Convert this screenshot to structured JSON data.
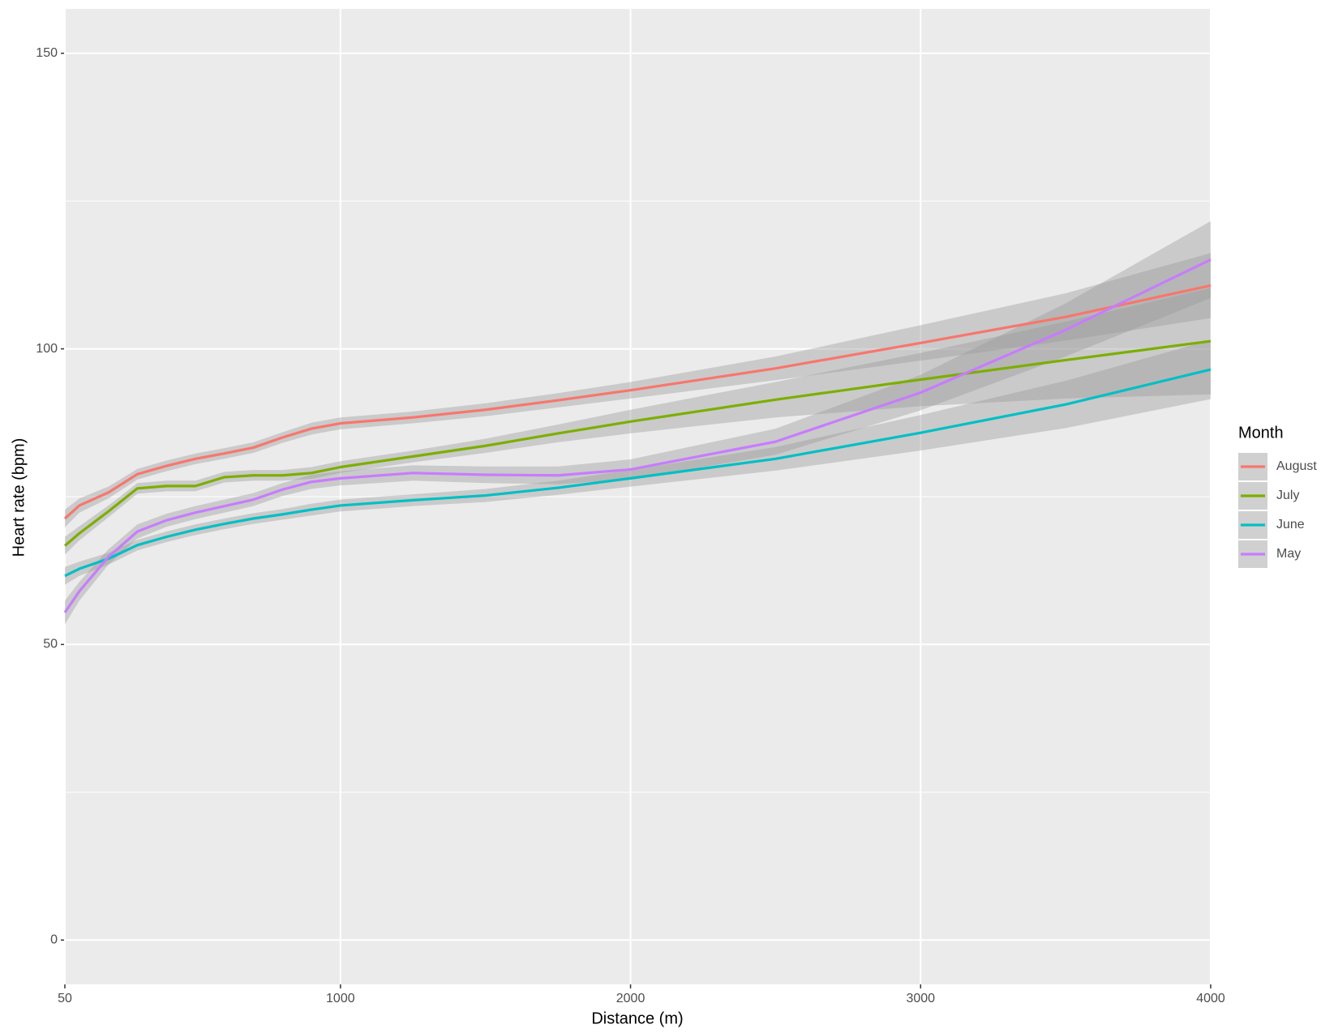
{
  "chart_data": {
    "type": "line",
    "x_label": "Distance (m)",
    "y_label": "Heart rate (bpm)",
    "legend_title": "Month",
    "legend_position": "right",
    "grid": true,
    "x": [
      50,
      100,
      200,
      300,
      400,
      500,
      600,
      700,
      800,
      900,
      1000,
      1250,
      1500,
      1750,
      2000,
      2500,
      3000,
      3500,
      4000
    ],
    "series": [
      {
        "name": "August",
        "color": "#F8766D",
        "values": [
          71.3,
          73.5,
          75.7,
          78.8,
          80.2,
          81.4,
          82.3,
          83.3,
          85,
          86.5,
          87.4,
          88.4,
          89.7,
          91.3,
          93,
          96.7,
          101,
          105.4,
          110.7
        ],
        "ci": [
          1.5,
          1.2,
          1,
          0.9,
          0.9,
          0.9,
          0.9,
          0.9,
          0.9,
          1,
          1,
          1,
          1.1,
          1.2,
          1.4,
          2,
          3,
          4,
          5.5
        ]
      },
      {
        "name": "July",
        "color": "#7CAE00",
        "values": [
          66.7,
          68.8,
          72.5,
          76.4,
          76.8,
          76.8,
          78.3,
          78.6,
          78.6,
          79,
          80,
          81.8,
          83.6,
          85.7,
          87.7,
          91.4,
          94.8,
          98.1,
          101.3
        ],
        "ci": [
          1.5,
          1.2,
          1,
          0.9,
          0.9,
          0.9,
          0.9,
          0.9,
          0.9,
          1,
          1,
          1,
          1.2,
          1.5,
          2,
          3,
          4.5,
          6.5,
          9
        ]
      },
      {
        "name": "June",
        "color": "#00BFC4",
        "values": [
          61.6,
          62.8,
          64.5,
          66.8,
          68.2,
          69.4,
          70.4,
          71.3,
          72,
          72.8,
          73.5,
          74.4,
          75.2,
          76.5,
          78.1,
          81.4,
          85.8,
          90.6,
          96.5
        ],
        "ci": [
          1.5,
          1.2,
          1,
          0.9,
          0.9,
          0.9,
          0.9,
          0.9,
          0.9,
          1,
          1,
          1,
          1.1,
          1.2,
          1.4,
          2,
          3,
          4,
          5
        ]
      },
      {
        "name": "May",
        "color": "#C77CFF",
        "values": [
          55.4,
          59,
          64.8,
          69.1,
          71,
          72.3,
          73.4,
          74.5,
          76.2,
          77.5,
          78.1,
          79,
          78.7,
          78.6,
          79.6,
          84.3,
          92.6,
          103.2,
          115.1
        ],
        "ci": [
          2,
          1.6,
          1.3,
          1.2,
          1.1,
          1.1,
          1.1,
          1.1,
          1.1,
          1.2,
          1.2,
          1.3,
          1.4,
          1.5,
          1.7,
          2.2,
          3,
          4.5,
          6.5
        ]
      }
    ],
    "xlim": [
      50,
      4000
    ],
    "xticks": [
      50,
      1000,
      2000,
      3000,
      4000
    ],
    "ylim": [
      -7.5,
      157.5
    ],
    "yticks": [
      0,
      50,
      100,
      150
    ],
    "yminor": [
      25,
      75,
      125
    ]
  }
}
